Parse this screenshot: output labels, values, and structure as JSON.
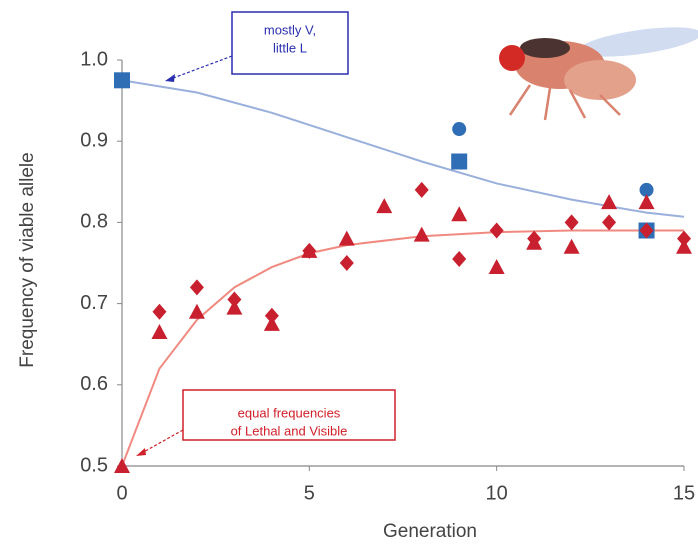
{
  "chart_data": {
    "type": "scatter",
    "x_label": "Generation",
    "y_label": "Frequency of viable allele",
    "xlim": [
      0,
      15
    ],
    "xticks": [
      0,
      5,
      10,
      15
    ],
    "ylim": [
      0.5,
      1.0
    ],
    "yticks": [
      0.5,
      0.6,
      0.7,
      0.8,
      0.9,
      {
        "value": 1.0,
        "label": "1.0"
      }
    ],
    "annotations": [
      {
        "lines": [
          "mostly V,",
          "little L"
        ],
        "color": "#2a2fb0"
      },
      {
        "lines": [
          "equal frequencies",
          "of Lethal and Visible"
        ],
        "color": "#d0202a"
      }
    ],
    "series": [
      {
        "type": "line",
        "color": "#9ab0dc",
        "x": [
          0,
          2,
          4,
          6,
          8,
          10,
          12,
          14,
          15
        ],
        "values": [
          0.975,
          0.96,
          0.935,
          0.905,
          0.875,
          0.848,
          0.828,
          0.812,
          0.807
        ]
      },
      {
        "type": "line",
        "color": "#f08a80",
        "x": [
          0,
          1,
          2,
          3,
          4,
          5,
          6,
          8,
          10,
          12,
          15
        ],
        "values": [
          0.5,
          0.62,
          0.68,
          0.72,
          0.745,
          0.762,
          0.772,
          0.783,
          0.788,
          0.79,
          0.79
        ]
      },
      {
        "type": "scatter",
        "marker": "square",
        "color": "#2f6db5",
        "x": [
          0,
          9,
          14
        ],
        "values": [
          0.975,
          0.875,
          0.79
        ]
      },
      {
        "type": "scatter",
        "marker": "circle",
        "color": "#2f6db5",
        "x": [
          9,
          14
        ],
        "values": [
          0.915,
          0.84
        ]
      },
      {
        "type": "scatter",
        "marker": "triangle",
        "color": "#c8202e",
        "x": [
          0,
          1,
          2,
          3,
          4,
          5,
          6,
          7,
          8,
          9,
          10,
          11,
          12,
          13,
          14,
          15
        ],
        "values": [
          0.5,
          0.665,
          0.69,
          0.695,
          0.675,
          0.765,
          0.78,
          0.82,
          0.785,
          0.81,
          0.745,
          0.775,
          0.77,
          0.825,
          0.825,
          0.77
        ]
      },
      {
        "type": "scatter",
        "marker": "diamond",
        "color": "#c8202e",
        "x": [
          1,
          2,
          3,
          4,
          5,
          6,
          8,
          9,
          10,
          11,
          12,
          13,
          14,
          15
        ],
        "values": [
          0.69,
          0.72,
          0.705,
          0.685,
          0.765,
          0.75,
          0.84,
          0.755,
          0.79,
          0.78,
          0.8,
          0.8,
          0.79,
          0.78
        ]
      }
    ]
  }
}
